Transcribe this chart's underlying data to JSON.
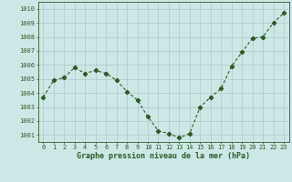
{
  "x": [
    0,
    1,
    2,
    3,
    4,
    5,
    6,
    7,
    8,
    9,
    10,
    11,
    12,
    13,
    14,
    15,
    16,
    17,
    18,
    19,
    20,
    21,
    22,
    23
  ],
  "y": [
    1003.7,
    1004.9,
    1005.1,
    1005.8,
    1005.4,
    1005.6,
    1005.4,
    1004.9,
    1004.1,
    1003.5,
    1002.3,
    1001.3,
    1001.1,
    1000.8,
    1001.1,
    1003.0,
    1003.7,
    1004.3,
    1005.9,
    1006.9,
    1007.9,
    1008.0,
    1009.0,
    1009.7
  ],
  "ylim": [
    1000.5,
    1010.5
  ],
  "yticks": [
    1001,
    1002,
    1003,
    1004,
    1005,
    1006,
    1007,
    1008,
    1009,
    1010
  ],
  "ytick_labels": [
    "1001",
    "1002",
    "1003",
    "1004",
    "1005",
    "1006",
    "1007",
    "1008",
    "1009",
    "1010"
  ],
  "xticks": [
    0,
    1,
    2,
    3,
    4,
    5,
    6,
    7,
    8,
    9,
    10,
    11,
    12,
    13,
    14,
    15,
    16,
    17,
    18,
    19,
    20,
    21,
    22,
    23
  ],
  "xlabel": "Graphe pression niveau de la mer (hPa)",
  "line_color": "#2d5a27",
  "marker": "D",
  "marker_size": 2.2,
  "bg_color": "#cce8e6",
  "grid_color": "#adc8c6",
  "axes_color": "#2d5a27",
  "tick_label_color": "#2d5a27",
  "xlabel_color": "#2d5a27",
  "tick_fontsize": 5.0,
  "xlabel_fontsize": 6.0
}
